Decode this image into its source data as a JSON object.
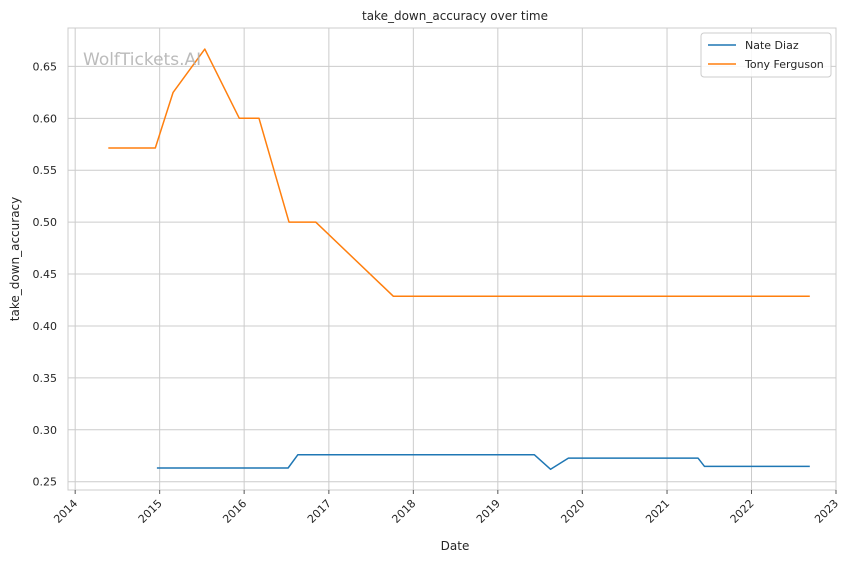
{
  "chart_data": {
    "type": "line",
    "title": "take_down_accuracy over time",
    "xlabel": "Date",
    "ylabel": "take_down_accuracy",
    "watermark": "WolfTickets.AI",
    "x_ticks": [
      "2014",
      "2015",
      "2016",
      "2017",
      "2018",
      "2019",
      "2020",
      "2021",
      "2022",
      "2023"
    ],
    "y_ticks": [
      "0.25",
      "0.30",
      "0.35",
      "0.40",
      "0.45",
      "0.50",
      "0.55",
      "0.60",
      "0.65"
    ],
    "xlim": [
      "2013-12-01",
      "2023-01-01"
    ],
    "ylim": [
      0.242,
      0.687
    ],
    "grid": true,
    "legend_position": "top-right",
    "series": [
      {
        "name": "Nate Diaz",
        "color": "#1f77b4",
        "points": [
          [
            "2014-12-20",
            0.2632
          ],
          [
            "2016-07-09",
            0.2632
          ],
          [
            "2016-08-20",
            0.2759
          ],
          [
            "2019-06-08",
            0.2759
          ],
          [
            "2019-08-17",
            0.2619
          ],
          [
            "2019-11-02",
            0.2727
          ],
          [
            "2021-05-15",
            0.2727
          ],
          [
            "2021-06-12",
            0.2647
          ],
          [
            "2022-09-10",
            0.2647
          ]
        ]
      },
      {
        "name": "Tony Ferguson",
        "color": "#ff7f0e",
        "points": [
          [
            "2014-05-24",
            0.5714
          ],
          [
            "2014-12-13",
            0.5714
          ],
          [
            "2015-02-28",
            0.625
          ],
          [
            "2015-07-15",
            0.6667
          ],
          [
            "2015-12-11",
            0.6
          ],
          [
            "2016-03-05",
            0.6
          ],
          [
            "2016-07-13",
            0.5
          ],
          [
            "2016-11-05",
            0.5
          ],
          [
            "2017-10-07",
            0.4286
          ],
          [
            "2022-09-10",
            0.4286
          ]
        ]
      }
    ]
  }
}
